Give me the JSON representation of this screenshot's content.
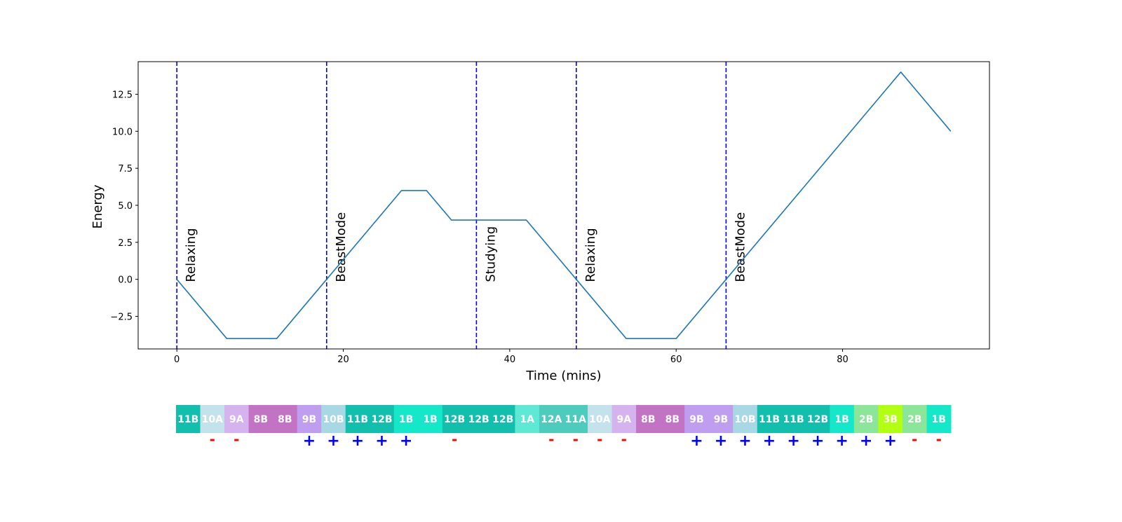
{
  "chart_data": {
    "type": "line",
    "title": "",
    "xlabel": "Time (mins)",
    "ylabel": "Energy",
    "xlim": [
      -4.65,
      97.65
    ],
    "ylim": [
      -4.7,
      14.7
    ],
    "xticks": [
      0,
      20,
      40,
      60,
      80
    ],
    "xtick_labels": [
      "0",
      "20",
      "40",
      "60",
      "80"
    ],
    "yticks": [
      -2.5,
      0.0,
      2.5,
      5.0,
      7.5,
      10.0,
      12.5
    ],
    "ytick_labels": [
      "−2.5",
      "0.0",
      "2.5",
      "5.0",
      "7.5",
      "10.0",
      "12.5"
    ],
    "grid": false,
    "line_color": "#1f77b4",
    "series": [
      {
        "x": [
          0,
          6,
          12,
          18,
          27,
          30,
          33,
          42,
          48,
          54,
          60,
          66,
          87,
          93
        ],
        "y": [
          0,
          -4,
          -4,
          0,
          6,
          6,
          4,
          4,
          0,
          -4,
          -4,
          0,
          14,
          10
        ]
      }
    ],
    "phase_marker_color": "#0000ff",
    "phases": [
      {
        "x": 0,
        "label": "Relaxing"
      },
      {
        "x": 18,
        "label": "BeastMode"
      },
      {
        "x": 36,
        "label": "Studying"
      },
      {
        "x": 48,
        "label": "Relaxing"
      },
      {
        "x": 66,
        "label": "BeastMode"
      }
    ],
    "key_strip": {
      "plus_color": "#0000ff",
      "minus_color": "#ff0000",
      "cells": [
        {
          "label": "11B",
          "color": "#12bfac",
          "sign": ""
        },
        {
          "label": "10A",
          "color": "#c4e2ec",
          "sign": "-"
        },
        {
          "label": "9A",
          "color": "#d5b3ee",
          "sign": "-"
        },
        {
          "label": "8B",
          "color": "#c373c3",
          "sign": ""
        },
        {
          "label": "8B",
          "color": "#c373c3",
          "sign": ""
        },
        {
          "label": "9B",
          "color": "#bf9eef",
          "sign": "+"
        },
        {
          "label": "10B",
          "color": "#a7d8e3",
          "sign": "+"
        },
        {
          "label": "11B",
          "color": "#12bfac",
          "sign": "+"
        },
        {
          "label": "12B",
          "color": "#12bfac",
          "sign": "+"
        },
        {
          "label": "1B",
          "color": "#14e8c8",
          "sign": "+"
        },
        {
          "label": "1B",
          "color": "#14e8c8",
          "sign": ""
        },
        {
          "label": "12B",
          "color": "#12bfac",
          "sign": "-"
        },
        {
          "label": "12B",
          "color": "#12bfac",
          "sign": ""
        },
        {
          "label": "12B",
          "color": "#12bfac",
          "sign": ""
        },
        {
          "label": "1A",
          "color": "#5ee9d5",
          "sign": ""
        },
        {
          "label": "12A",
          "color": "#4dccbd",
          "sign": "-"
        },
        {
          "label": "11A",
          "color": "#4dccbd",
          "sign": "-"
        },
        {
          "label": "10A",
          "color": "#c4e2ec",
          "sign": "-"
        },
        {
          "label": "9A",
          "color": "#d5b3ee",
          "sign": "-"
        },
        {
          "label": "8B",
          "color": "#c373c3",
          "sign": ""
        },
        {
          "label": "8B",
          "color": "#c373c3",
          "sign": ""
        },
        {
          "label": "9B",
          "color": "#bf9eef",
          "sign": "+"
        },
        {
          "label": "9B",
          "color": "#bf9eef",
          "sign": "+"
        },
        {
          "label": "10B",
          "color": "#a7d8e3",
          "sign": "+"
        },
        {
          "label": "11B",
          "color": "#12bfac",
          "sign": "+"
        },
        {
          "label": "11B",
          "color": "#12bfac",
          "sign": "+"
        },
        {
          "label": "12B",
          "color": "#12bfac",
          "sign": "+"
        },
        {
          "label": "1B",
          "color": "#14e8c8",
          "sign": "+"
        },
        {
          "label": "2B",
          "color": "#8be69a",
          "sign": "+"
        },
        {
          "label": "3B",
          "color": "#b2ff12",
          "sign": "+"
        },
        {
          "label": "2B",
          "color": "#8be69a",
          "sign": "-"
        },
        {
          "label": "1B",
          "color": "#14e8c8",
          "sign": "-"
        }
      ]
    }
  }
}
